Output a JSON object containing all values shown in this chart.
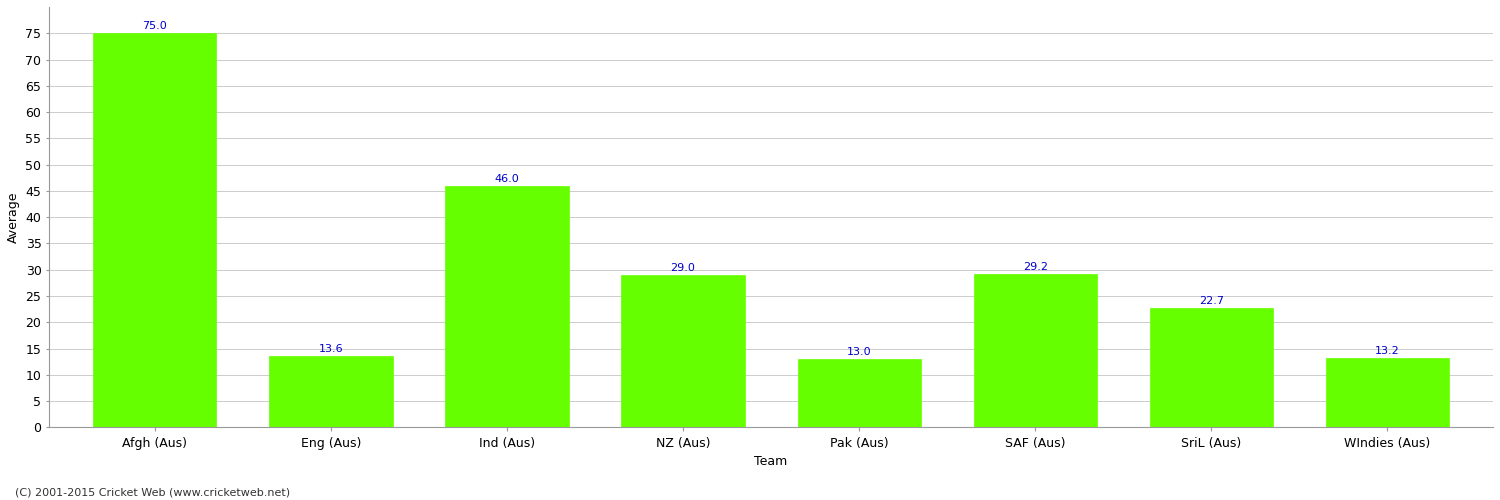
{
  "categories": [
    "Afgh (Aus)",
    "Eng (Aus)",
    "Ind (Aus)",
    "NZ (Aus)",
    "Pak (Aus)",
    "SAF (Aus)",
    "SriL (Aus)",
    "WIndies (Aus)"
  ],
  "values": [
    75.0,
    13.6,
    46.0,
    29.0,
    13.0,
    29.2,
    22.7,
    13.2
  ],
  "bar_color": "#66ff00",
  "bar_edge_color": "#66ff00",
  "label_color": "#0000cc",
  "xlabel": "Team",
  "ylabel": "Average",
  "ylim": [
    0,
    80
  ],
  "yticks": [
    0,
    5,
    10,
    15,
    20,
    25,
    30,
    35,
    40,
    45,
    50,
    55,
    60,
    65,
    70,
    75
  ],
  "grid_color": "#cccccc",
  "bg_color": "#ffffff",
  "footer": "(C) 2001-2015 Cricket Web (www.cricketweb.net)",
  "axis_label_fontsize": 9,
  "tick_label_fontsize": 9,
  "value_label_fontsize": 8,
  "xlabel_fontsize": 9,
  "footer_fontsize": 8,
  "bar_width": 0.7
}
